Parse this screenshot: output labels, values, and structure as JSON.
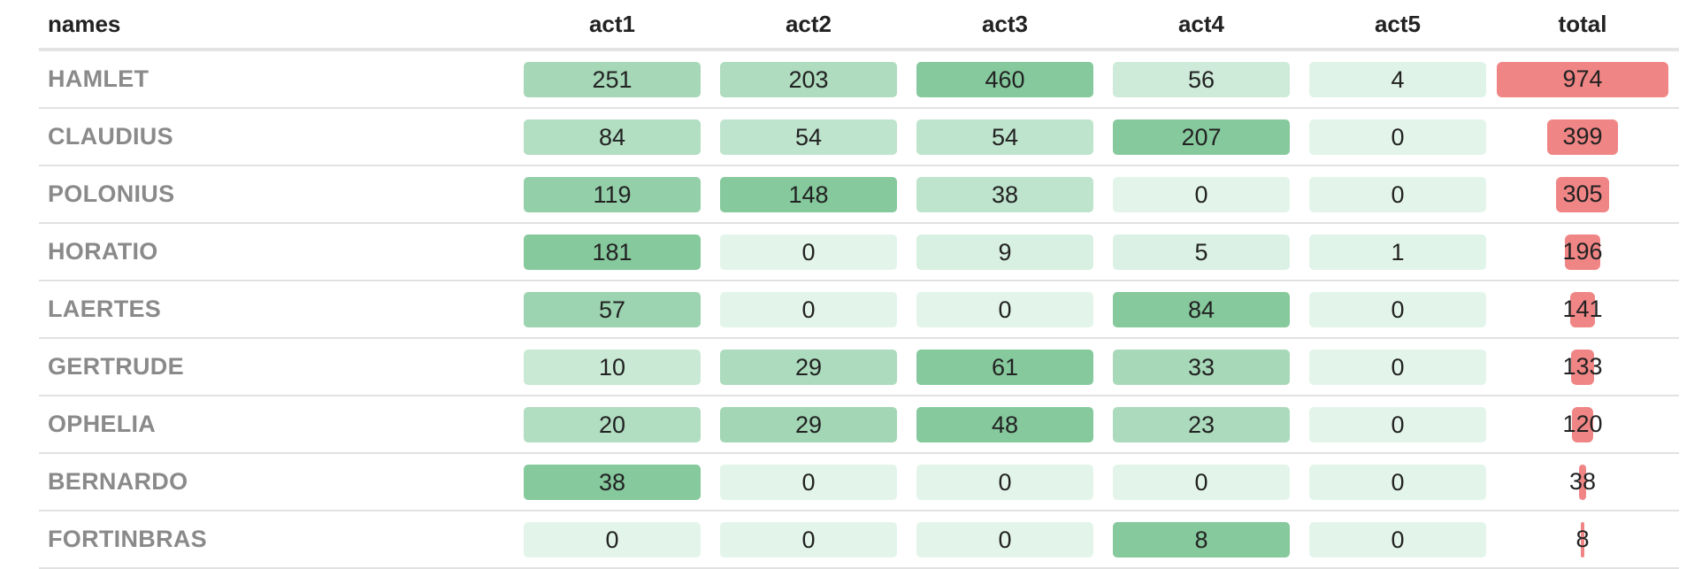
{
  "chart_data": {
    "type": "table",
    "columns": [
      "names",
      "act1",
      "act2",
      "act3",
      "act4",
      "act5",
      "total"
    ],
    "rows": [
      {
        "name": "HAMLET",
        "acts": [
          251,
          203,
          460,
          56,
          4
        ],
        "total": 974
      },
      {
        "name": "CLAUDIUS",
        "acts": [
          84,
          54,
          54,
          207,
          0
        ],
        "total": 399
      },
      {
        "name": "POLONIUS",
        "acts": [
          119,
          148,
          38,
          0,
          0
        ],
        "total": 305
      },
      {
        "name": "HORATIO",
        "acts": [
          181,
          0,
          9,
          5,
          1
        ],
        "total": 196
      },
      {
        "name": "LAERTES",
        "acts": [
          57,
          0,
          0,
          84,
          0
        ],
        "total": 141
      },
      {
        "name": "GERTRUDE",
        "acts": [
          10,
          29,
          61,
          33,
          0
        ],
        "total": 133
      },
      {
        "name": "OPHELIA",
        "acts": [
          20,
          29,
          48,
          23,
          0
        ],
        "total": 120
      },
      {
        "name": "BERNARDO",
        "acts": [
          38,
          0,
          0,
          0,
          0
        ],
        "total": 38
      },
      {
        "name": "FORTINBRAS",
        "acts": [
          0,
          0,
          0,
          8,
          0
        ],
        "total": 8
      }
    ],
    "colors": {
      "tile_low": "#e3f5eb",
      "tile_high": "#86c99d",
      "total_bar": "#f08585"
    }
  }
}
